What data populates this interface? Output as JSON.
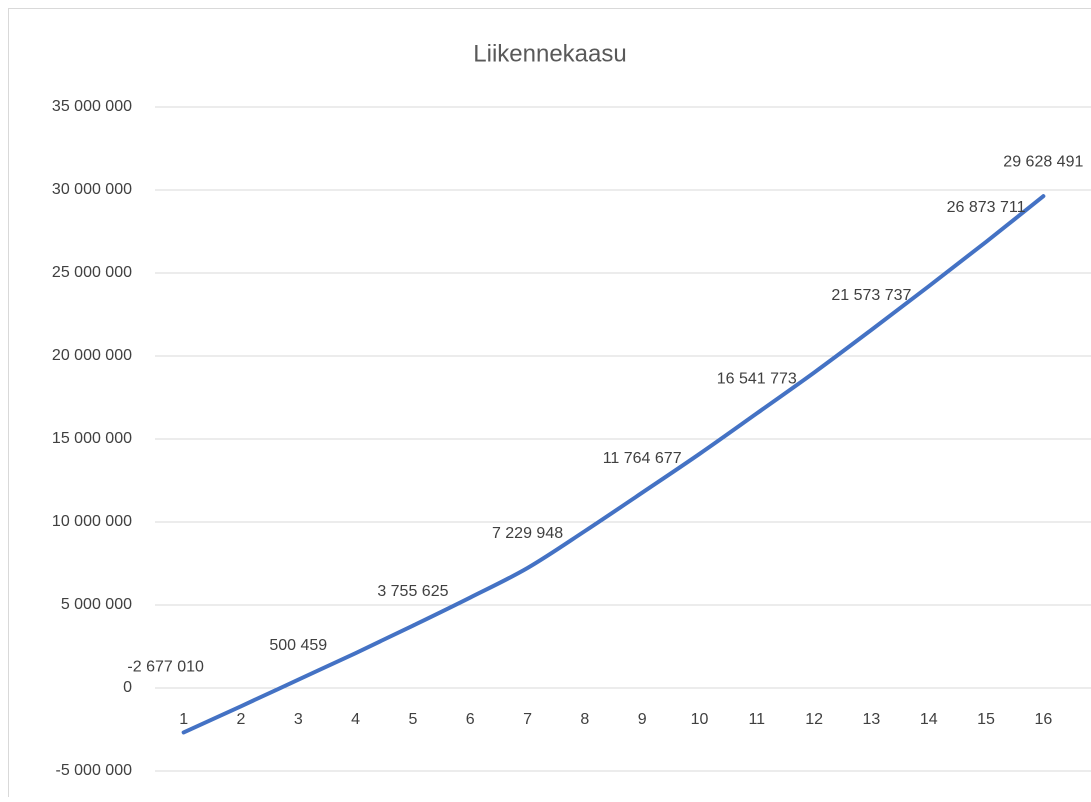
{
  "chart_data": {
    "type": "line",
    "title": "Liikennekaasu",
    "categories": [
      "1",
      "2",
      "3",
      "4",
      "5",
      "6",
      "7",
      "8",
      "9",
      "10",
      "11",
      "12",
      "13",
      "14",
      "15",
      "16"
    ],
    "series": [
      {
        "name": "Liikennekaasu",
        "color": "#4472c4",
        "values": [
          -2677010,
          -1100000,
          500459,
          2100000,
          3755625,
          5450000,
          7229948,
          9450000,
          11764677,
          14100000,
          16541773,
          19000000,
          21573737,
          24200000,
          26873711,
          29628491
        ],
        "value_labels": [
          "-2 677 010",
          null,
          "500 459",
          null,
          "3 755 625",
          null,
          "7 229 948",
          null,
          "11 764 677",
          null,
          "16 541 773",
          null,
          "21 573 737",
          null,
          "26 873 711",
          "29 628 491"
        ]
      }
    ],
    "ylim": [
      -5000000,
      35000000
    ],
    "yticks": [
      {
        "value": -5000000,
        "label": "-5 000 000"
      },
      0,
      {
        "value": 5000000,
        "label": "5 000 000"
      },
      {
        "value": 10000000,
        "label": "10 000 000"
      },
      {
        "value": 15000000,
        "label": "15 000 000"
      },
      {
        "value": 20000000,
        "label": "20 000 000"
      },
      {
        "value": 25000000,
        "label": "25 000 000"
      },
      {
        "value": 30000000,
        "label": "30 000 000"
      },
      {
        "value": 35000000,
        "label": "35 000 000"
      }
    ],
    "grid": true
  }
}
